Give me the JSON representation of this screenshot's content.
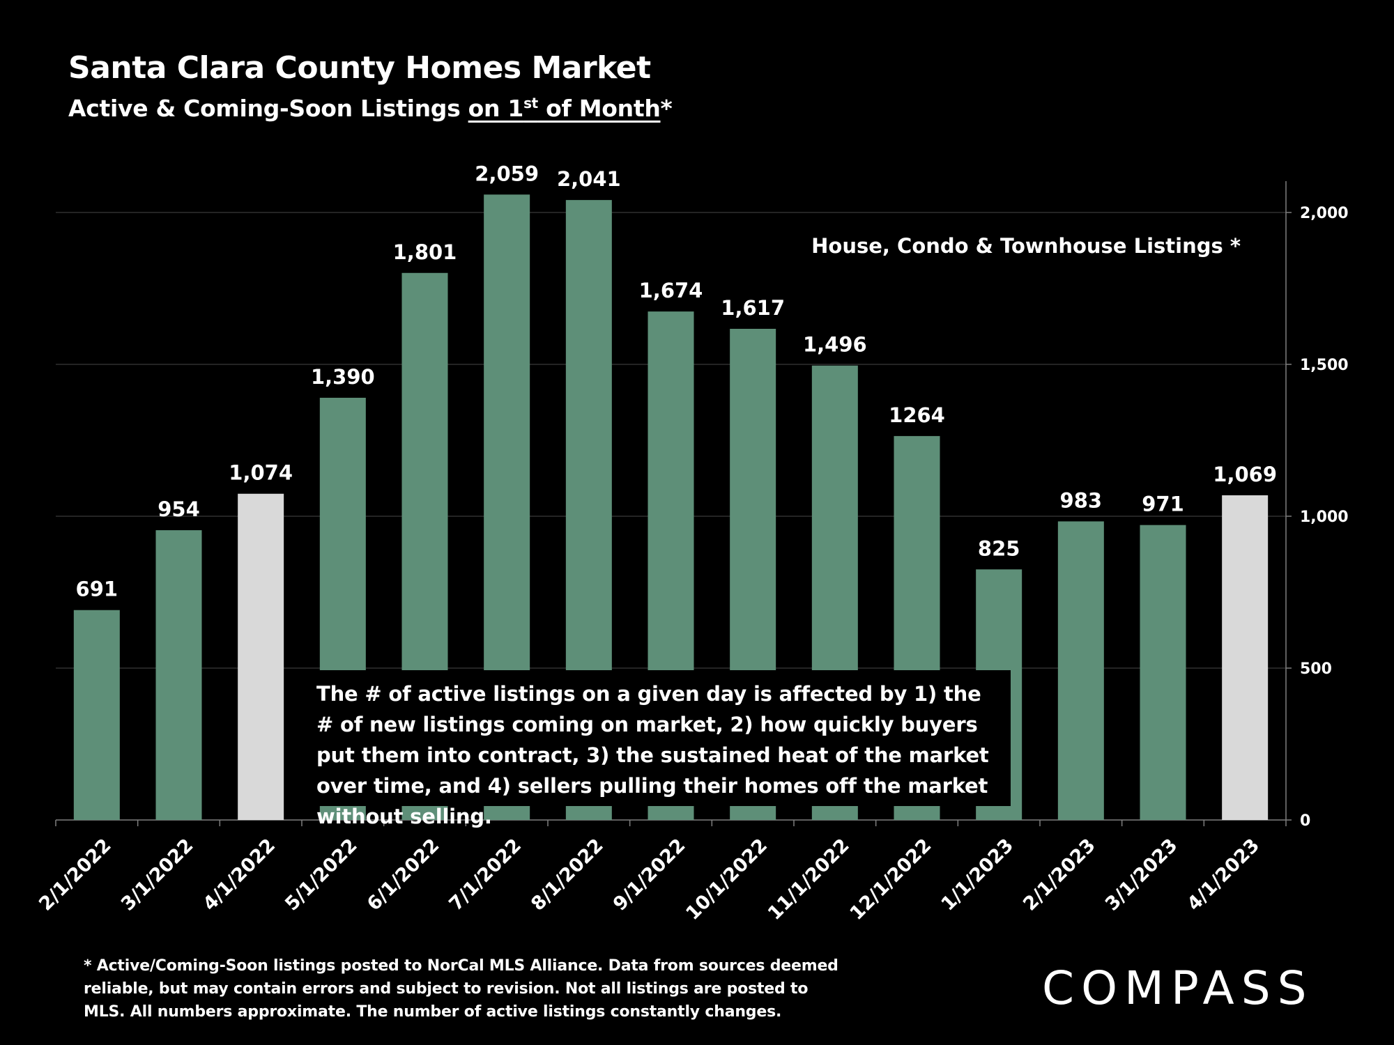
{
  "header": {
    "title": "Santa Clara County Homes Market",
    "subtitle_prefix": "Active & Coming-Soon Listings ",
    "subtitle_underlined_a": "on 1",
    "subtitle_sup": "st",
    "subtitle_underlined_b": " of Month",
    "subtitle_suffix": "*"
  },
  "annotation": "The # of active listings on a given day is affected by 1) the # of new listings coming on market, 2) how quickly buyers put them into contract, 3) the sustained heat of the market over time, and 4) sellers pulling their homes off the market without selling.",
  "footnote": "* Active/Coming-Soon listings posted to NorCal MLS Alliance.  Data from sources deemed reliable, but may contain errors and subject to revision.  Not all listings are posted to MLS. All numbers approximate. The number of active listings constantly changes.",
  "logo": "COMPASS",
  "colors": {
    "background": "#000000",
    "bar": "#5e8f78",
    "bar_highlight": "#d9d9d9",
    "text": "#ffffff",
    "grid": "#3a3a3a",
    "axis": "#7f7f7f"
  },
  "chart_data": {
    "type": "bar",
    "series_label": "House, Condo & Townhouse Listings *",
    "categories": [
      "2/1/2022",
      "3/1/2022",
      "4/1/2022",
      "5/1/2022",
      "6/1/2022",
      "7/1/2022",
      "8/1/2022",
      "9/1/2022",
      "10/1/2022",
      "11/1/2022",
      "12/1/2022",
      "1/1/2023",
      "2/1/2023",
      "3/1/2023",
      "4/1/2023"
    ],
    "values": [
      691,
      954,
      1074,
      1390,
      1801,
      2059,
      2041,
      1674,
      1617,
      1496,
      1264,
      825,
      983,
      971,
      1069
    ],
    "value_labels": [
      "691",
      "954",
      "1,074",
      "1,390",
      "1,801",
      "2,059",
      "2,041",
      "1,674",
      "1,617",
      "1,496",
      "1264",
      "825",
      "983",
      "971",
      "1,069"
    ],
    "highlighted": [
      false,
      false,
      true,
      false,
      false,
      false,
      false,
      false,
      false,
      false,
      false,
      false,
      false,
      false,
      true
    ],
    "ylim": [
      0,
      2100
    ],
    "yticks": [
      0,
      500,
      1000,
      1500,
      2000
    ],
    "ytick_labels": [
      "0",
      "500",
      "1,000",
      "1,500",
      "2,000"
    ],
    "y_axis_side": "right",
    "grid": true,
    "xlabel": "",
    "ylabel": ""
  }
}
